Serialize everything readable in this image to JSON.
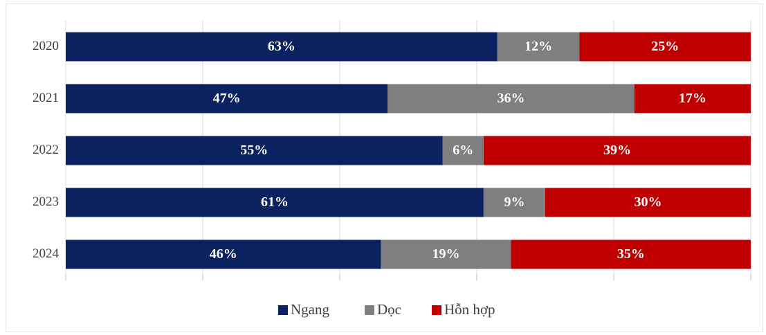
{
  "chart_data": {
    "type": "stacked-barh",
    "categories": [
      "2020",
      "2021",
      "2022",
      "2023",
      "2024"
    ],
    "series": [
      {
        "name": "Ngang",
        "color": "#0c2260",
        "values": [
          63,
          47,
          55,
          61,
          46
        ],
        "value_labels": [
          "63%",
          "47%",
          "55%",
          "61%",
          "46%"
        ]
      },
      {
        "name": "Dọc",
        "color": "#7f7f7f",
        "values": [
          12,
          36,
          6,
          9,
          19
        ],
        "value_labels": [
          "12%",
          "36%",
          "6%",
          "9%",
          "19%"
        ]
      },
      {
        "name": "Hỗn hợp",
        "color": "#c00000",
        "values": [
          25,
          17,
          39,
          30,
          35
        ],
        "value_labels": [
          "25%",
          "17%",
          "39%",
          "30%",
          "35%"
        ]
      }
    ],
    "xlim": [
      0,
      100
    ],
    "xticks": [
      0,
      20,
      40,
      60,
      80,
      100
    ],
    "grid": true,
    "legend": "bottom"
  }
}
